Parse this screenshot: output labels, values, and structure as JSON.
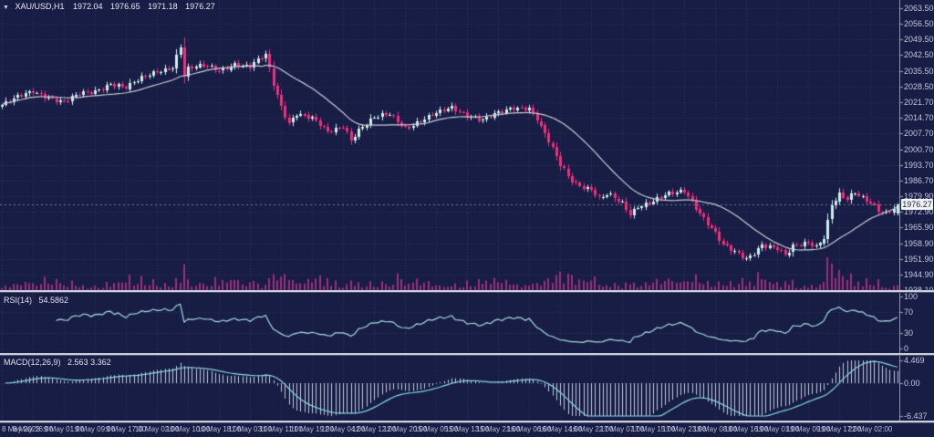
{
  "header": {
    "menu_icon": "▼",
    "symbol": "XAU/USD,H1",
    "open": "1972.04",
    "high": "1976.65",
    "low": "1971.18",
    "close": "1976.27"
  },
  "indicators": {
    "rsi": {
      "name": "RSI(14)",
      "value": "54.5862"
    },
    "macd": {
      "name": "MACD(12,26,9)",
      "value": "2.563 3.362"
    }
  },
  "price_axis": {
    "labels": [
      "2063.50",
      "2056.50",
      "2049.50",
      "2042.50",
      "2035.50",
      "2028.50",
      "2021.70",
      "2014.70",
      "2007.70",
      "2000.70",
      "1993.70",
      "1986.70",
      "1979.90",
      "1972.90",
      "1965.90",
      "1958.90",
      "1951.90",
      "1944.90",
      "1938.10"
    ],
    "current_price": "1976.27"
  },
  "rsi_axis": {
    "labels": [
      "100",
      "70",
      "30",
      "0"
    ]
  },
  "macd_axis": {
    "labels": [
      "4.469",
      "0.00",
      "-6.437"
    ]
  },
  "colors": {
    "background": "#181d45",
    "grid": "#2e3466",
    "bull": "#cdeeec",
    "bear": "#f02e7e",
    "ma": "#c7c9d4",
    "volume": "#9a2e7d",
    "rsi_line": "#a5d9e0",
    "macd_signal": "#86d8e3",
    "macd_hist": "#c3cbdf",
    "axis_text": "#c2c6de",
    "tick": "#8d93ac",
    "current_price_line": "rgba(230,233,245,0.45)",
    "price_tag_bg": "#f2f3f7",
    "price_tag_text": "#1a1f48"
  },
  "chart_data": {
    "type": "candlestick",
    "symbol": "XAU/USD",
    "timeframe": "H1",
    "title": "XAU/USD,H1",
    "x_labels": [
      "8 May 2023",
      "8 May 16:00",
      "9 May 01:00",
      "9 May 09:00",
      "9 May 17:00",
      "10 May 02:00",
      "10 May 10:00",
      "10 May 18:00",
      "11 May 03:00",
      "11 May 11:00",
      "11 May 19:00",
      "12 May 04:00",
      "12 May 12:00",
      "12 May 20:00",
      "15 May 05:00",
      "15 May 13:00",
      "15 May 21:00",
      "16 May 06:00",
      "16 May 14:00",
      "16 May 22:00",
      "17 May 07:00",
      "17 May 15:00",
      "17 May 23:00",
      "18 May 08:00",
      "18 May 16:00",
      "19 May 01:00",
      "19 May 09:00",
      "19 May 17:00",
      "22 May 02:00"
    ],
    "bars_total": 232,
    "bars_per_x_label": 8,
    "y_range": [
      1938.1,
      2067.0
    ],
    "close_anchors": [
      [
        0,
        2020.5
      ],
      [
        4,
        2023.5
      ],
      [
        8,
        2026.5
      ],
      [
        12,
        2024
      ],
      [
        16,
        2021.5
      ],
      [
        20,
        2025
      ],
      [
        24,
        2026.5
      ],
      [
        28,
        2030
      ],
      [
        32,
        2028
      ],
      [
        36,
        2032
      ],
      [
        40,
        2035.5
      ],
      [
        44,
        2037.5
      ],
      [
        46,
        2046.5
      ],
      [
        47,
        2033
      ],
      [
        48,
        2036
      ],
      [
        52,
        2038
      ],
      [
        56,
        2036
      ],
      [
        60,
        2038.5
      ],
      [
        64,
        2037
      ],
      [
        66,
        2040
      ],
      [
        68,
        2042.5
      ],
      [
        70,
        2030
      ],
      [
        72,
        2020
      ],
      [
        74,
        2012.5
      ],
      [
        76,
        2016.5
      ],
      [
        80,
        2014
      ],
      [
        84,
        2008.5
      ],
      [
        88,
        2011.5
      ],
      [
        90,
        2005
      ],
      [
        92,
        2009
      ],
      [
        96,
        2014.5
      ],
      [
        100,
        2016.5
      ],
      [
        104,
        2010.5
      ],
      [
        108,
        2013
      ],
      [
        112,
        2016.5
      ],
      [
        116,
        2019.5
      ],
      [
        120,
        2016
      ],
      [
        124,
        2013.5
      ],
      [
        128,
        2016.5
      ],
      [
        132,
        2019.5
      ],
      [
        136,
        2019
      ],
      [
        138,
        2014
      ],
      [
        140,
        2007
      ],
      [
        142,
        2000.5
      ],
      [
        144,
        1993.5
      ],
      [
        146,
        1989
      ],
      [
        148,
        1985.5
      ],
      [
        152,
        1983
      ],
      [
        154,
        1978.5
      ],
      [
        156,
        1980.5
      ],
      [
        160,
        1976.5
      ],
      [
        162,
        1972
      ],
      [
        164,
        1975.5
      ],
      [
        168,
        1978
      ],
      [
        172,
        1980.5
      ],
      [
        176,
        1982
      ],
      [
        178,
        1978
      ],
      [
        180,
        1972.5
      ],
      [
        182,
        1968
      ],
      [
        184,
        1963.5
      ],
      [
        186,
        1958
      ],
      [
        188,
        1955.5
      ],
      [
        192,
        1952
      ],
      [
        194,
        1955
      ],
      [
        196,
        1958.5
      ],
      [
        200,
        1956.5
      ],
      [
        202,
        1953
      ],
      [
        204,
        1957
      ],
      [
        208,
        1959.5
      ],
      [
        210,
        1957.5
      ],
      [
        212,
        1962
      ],
      [
        214,
        1976
      ],
      [
        216,
        1980.5
      ],
      [
        218,
        1978
      ],
      [
        220,
        1981
      ],
      [
        222,
        1979
      ],
      [
        224,
        1977.5
      ],
      [
        226,
        1974
      ],
      [
        228,
        1972.5
      ],
      [
        230,
        1974.5
      ],
      [
        231,
        1976.27
      ]
    ],
    "last_bar": {
      "open": 1972.04,
      "high": 1976.65,
      "low": 1971.18,
      "close": 1976.27
    },
    "overlays": [
      {
        "type": "moving_average",
        "period": 21
      }
    ],
    "volume_pane": {
      "shown": true
    },
    "subcharts": [
      {
        "type": "line",
        "name": "RSI(14)",
        "range": [
          0,
          100
        ],
        "levels": [
          70,
          30
        ],
        "last_value": 54.5862
      },
      {
        "type": "macd",
        "name": "MACD(12,26,9)",
        "range": [
          -6.437,
          4.469
        ],
        "last_values": [
          2.563,
          3.362
        ]
      }
    ]
  }
}
